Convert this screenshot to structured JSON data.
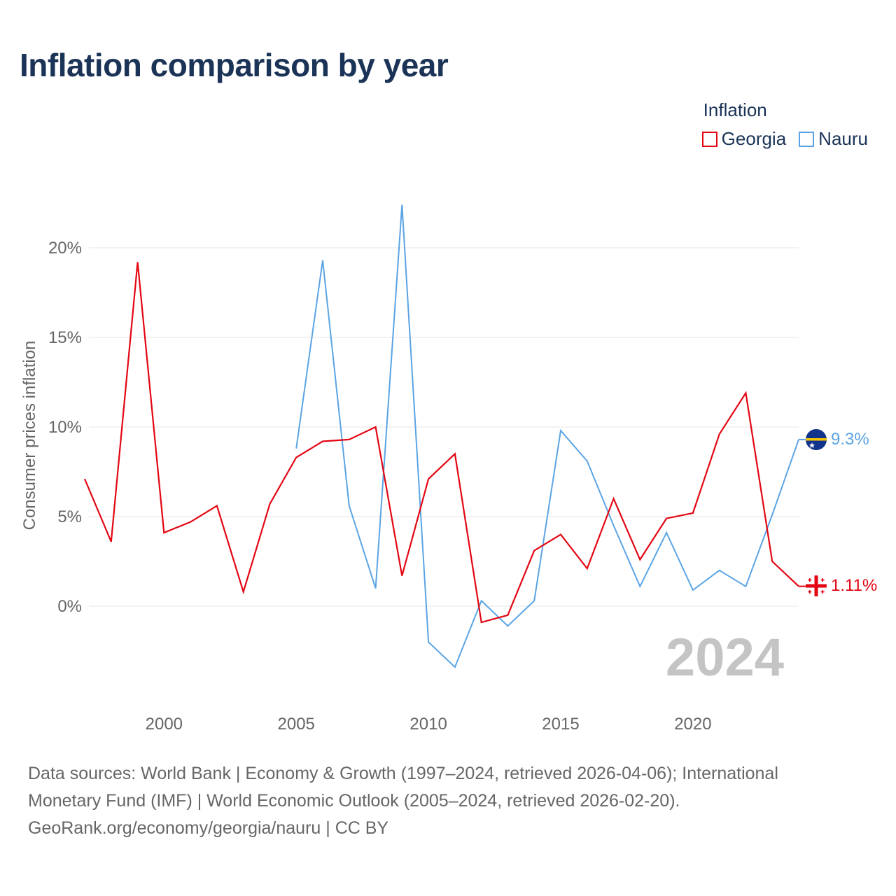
{
  "title": "Inflation comparison by year",
  "legend": {
    "title": "Inflation",
    "items": [
      {
        "name": "Georgia",
        "color": "#e30613"
      },
      {
        "name": "Nauru",
        "color": "#5aa4e4"
      }
    ]
  },
  "year_watermark": "2024",
  "footer": {
    "line1": "Data sources: World Bank | Economy & Growth (1997–2024, retrieved 2026-04-06); International",
    "line2": "Monetary Fund (IMF) | World Economic Outlook (2005–2024, retrieved 2026-02-20).",
    "line3": "GeoRank.org/economy/georgia/nauru | CC BY"
  },
  "chart_data": {
    "type": "line",
    "title": "Inflation comparison by year",
    "xlabel": "",
    "ylabel": "Consumer prices inflation",
    "xlim": [
      1997,
      2024
    ],
    "ylim": [
      -5,
      22
    ],
    "x_ticks": [
      2000,
      2005,
      2010,
      2015,
      2020
    ],
    "y_ticks": [
      0,
      5,
      10,
      15,
      20
    ],
    "y_tick_labels": [
      "0%",
      "5%",
      "10%",
      "15%",
      "20%"
    ],
    "grid": true,
    "series": [
      {
        "name": "Georgia",
        "color": "#e30613",
        "flag": "georgia-flag-icon",
        "end_label": "1.11%",
        "x": [
          1997,
          1998,
          1999,
          2000,
          2001,
          2002,
          2003,
          2004,
          2005,
          2006,
          2007,
          2008,
          2009,
          2010,
          2011,
          2012,
          2013,
          2014,
          2015,
          2016,
          2017,
          2018,
          2019,
          2020,
          2021,
          2022,
          2023,
          2024
        ],
        "values": [
          7.1,
          3.6,
          19.2,
          4.1,
          4.7,
          5.6,
          0.8,
          5.7,
          8.3,
          9.2,
          9.3,
          10.0,
          1.7,
          7.1,
          8.5,
          -0.9,
          -0.5,
          3.1,
          4.0,
          2.1,
          6.0,
          2.6,
          4.9,
          5.2,
          9.6,
          11.9,
          2.5,
          1.11
        ]
      },
      {
        "name": "Nauru",
        "color": "#5aa4e4",
        "flag": "nauru-flag-icon",
        "end_label": "9.3%",
        "x": [
          2005,
          2006,
          2007,
          2008,
          2009,
          2010,
          2011,
          2012,
          2013,
          2014,
          2015,
          2016,
          2017,
          2018,
          2019,
          2020,
          2021,
          2022,
          2023,
          2024
        ],
        "values": [
          8.8,
          19.3,
          5.6,
          1.0,
          22.4,
          -2.0,
          -3.4,
          0.3,
          -1.1,
          0.3,
          9.8,
          8.1,
          4.5,
          1.1,
          4.1,
          0.9,
          2.0,
          1.1,
          5.1,
          9.3
        ]
      }
    ]
  }
}
